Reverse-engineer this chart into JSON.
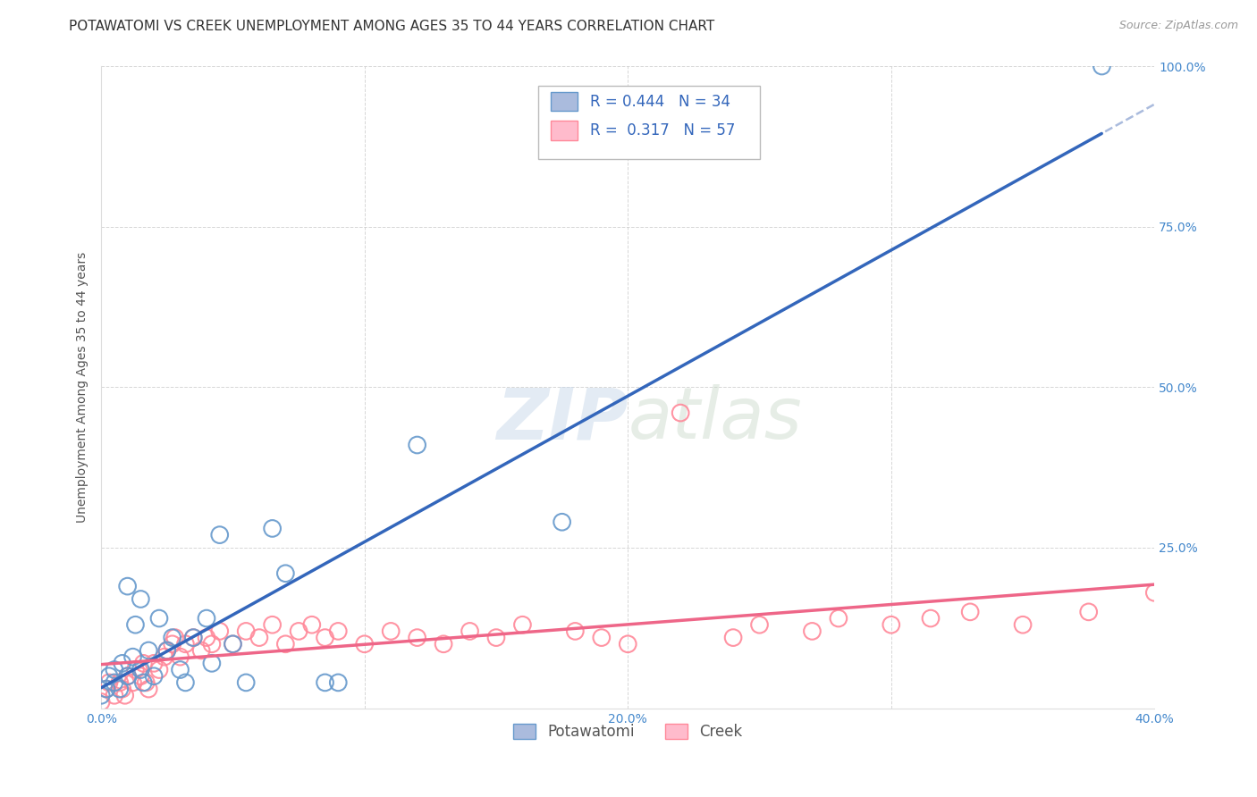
{
  "title": "POTAWATOMI VS CREEK UNEMPLOYMENT AMONG AGES 35 TO 44 YEARS CORRELATION CHART",
  "source": "Source: ZipAtlas.com",
  "ylabel": "Unemployment Among Ages 35 to 44 years",
  "xlim": [
    0.0,
    0.4
  ],
  "ylim": [
    0.0,
    1.0
  ],
  "xticks": [
    0.0,
    0.1,
    0.2,
    0.3,
    0.4
  ],
  "xtick_labels": [
    "0.0%",
    "",
    "20.0%",
    "",
    "40.0%"
  ],
  "yticks": [
    0.0,
    0.25,
    0.5,
    0.75,
    1.0
  ],
  "ytick_labels": [
    "",
    "25.0%",
    "50.0%",
    "75.0%",
    "100.0%"
  ],
  "background_color": "#ffffff",
  "potawatomi_color": "#6699cc",
  "creek_color": "#ff8899",
  "trendline_blue": "#3366bb",
  "trendline_blue_dash": "#aabbdd",
  "trendline_pink": "#ee6688",
  "potawatomi_R": 0.444,
  "potawatomi_N": 34,
  "creek_R": 0.317,
  "creek_N": 57,
  "potawatomi_scatter_x": [
    0.0,
    0.002,
    0.003,
    0.005,
    0.005,
    0.007,
    0.008,
    0.01,
    0.01,
    0.012,
    0.013,
    0.015,
    0.015,
    0.016,
    0.018,
    0.02,
    0.022,
    0.025,
    0.027,
    0.03,
    0.032,
    0.035,
    0.04,
    0.042,
    0.045,
    0.05,
    0.055,
    0.065,
    0.07,
    0.085,
    0.09,
    0.12,
    0.175,
    0.38
  ],
  "potawatomi_scatter_y": [
    0.02,
    0.03,
    0.05,
    0.04,
    0.06,
    0.03,
    0.07,
    0.05,
    0.19,
    0.08,
    0.13,
    0.06,
    0.17,
    0.04,
    0.09,
    0.05,
    0.14,
    0.09,
    0.11,
    0.06,
    0.04,
    0.11,
    0.14,
    0.07,
    0.27,
    0.1,
    0.04,
    0.28,
    0.21,
    0.04,
    0.04,
    0.41,
    0.29,
    1.0
  ],
  "creek_scatter_x": [
    0.0,
    0.002,
    0.003,
    0.005,
    0.007,
    0.008,
    0.009,
    0.01,
    0.012,
    0.013,
    0.015,
    0.016,
    0.017,
    0.018,
    0.02,
    0.022,
    0.024,
    0.025,
    0.027,
    0.028,
    0.03,
    0.032,
    0.035,
    0.038,
    0.04,
    0.042,
    0.045,
    0.05,
    0.055,
    0.06,
    0.065,
    0.07,
    0.075,
    0.08,
    0.085,
    0.09,
    0.1,
    0.11,
    0.12,
    0.13,
    0.14,
    0.15,
    0.16,
    0.18,
    0.19,
    0.2,
    0.22,
    0.24,
    0.25,
    0.27,
    0.28,
    0.3,
    0.315,
    0.33,
    0.35,
    0.375,
    0.4
  ],
  "creek_scatter_y": [
    0.01,
    0.03,
    0.04,
    0.02,
    0.04,
    0.03,
    0.02,
    0.05,
    0.04,
    0.06,
    0.05,
    0.07,
    0.04,
    0.03,
    0.07,
    0.06,
    0.08,
    0.09,
    0.1,
    0.11,
    0.08,
    0.1,
    0.11,
    0.09,
    0.11,
    0.1,
    0.12,
    0.1,
    0.12,
    0.11,
    0.13,
    0.1,
    0.12,
    0.13,
    0.11,
    0.12,
    0.1,
    0.12,
    0.11,
    0.1,
    0.12,
    0.11,
    0.13,
    0.12,
    0.11,
    0.1,
    0.46,
    0.11,
    0.13,
    0.12,
    0.14,
    0.13,
    0.14,
    0.15,
    0.13,
    0.15,
    0.18
  ],
  "title_fontsize": 11,
  "axis_label_fontsize": 10,
  "tick_fontsize": 10,
  "legend_fontsize": 12,
  "source_fontsize": 9
}
